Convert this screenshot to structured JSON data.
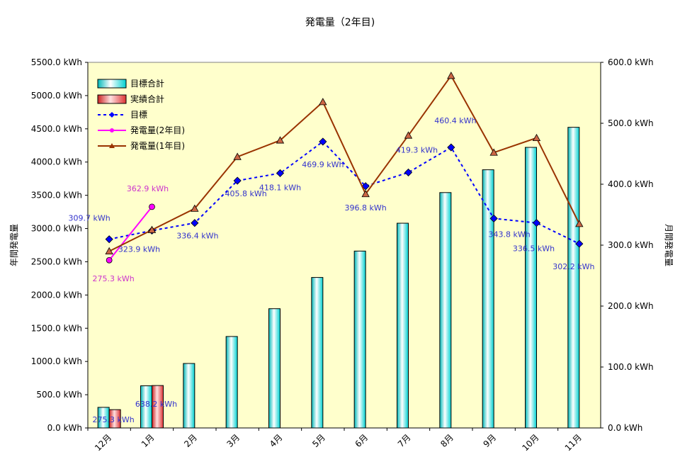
{
  "chart_data": {
    "type": "bar",
    "title": "発電量（2年目)",
    "ylabel_left": "年間発電量",
    "ylabel_right": "月間発電量",
    "ylim_left": [
      0,
      5500
    ],
    "ylim_right": [
      0,
      600
    ],
    "left_ticks": [
      "0.0 kWh",
      "500.0 kWh",
      "1000.0 kWh",
      "1500.0 kWh",
      "2000.0 kWh",
      "2500.0 kWh",
      "3000.0 kWh",
      "3500.0 kWh",
      "4000.0 kWh",
      "4500.0 kWh",
      "5000.0 kWh",
      "5500.0 kWh"
    ],
    "right_ticks": [
      "0.0 kWh",
      "100.0 kWh",
      "200.0 kWh",
      "300.0 kWh",
      "400.0 kWh",
      "500.0 kWh",
      "600.0 kWh"
    ],
    "categories": [
      "12月",
      "1月",
      "2月",
      "3月",
      "4月",
      "5月",
      "6月",
      "7月",
      "8月",
      "9月",
      "10月",
      "11月"
    ],
    "legend_position": "top-left",
    "plot_background": "#ffffcc",
    "series": [
      {
        "name": "目標合計",
        "kind": "bar",
        "axis": "left",
        "color": "#00ffff",
        "values": [
          310,
          634,
          970,
          1376,
          1794,
          2264,
          2661,
          3080,
          3541,
          3884,
          4221,
          4523
        ]
      },
      {
        "name": "実績合計",
        "kind": "bar",
        "axis": "left",
        "color": "#ff9999",
        "values": [
          275.3,
          638.2,
          null,
          null,
          null,
          null,
          null,
          null,
          null,
          null,
          null,
          null
        ]
      },
      {
        "name": "目標",
        "kind": "line",
        "axis": "right",
        "color": "#0000ff",
        "dash": true,
        "marker": "diamond",
        "values": [
          309.7,
          323.9,
          336.4,
          405.8,
          418.1,
          469.9,
          396.8,
          419.3,
          460.4,
          343.8,
          336.5,
          302.2
        ]
      },
      {
        "name": "発電量(2年目)",
        "kind": "line",
        "axis": "right",
        "color": "#ff00ff",
        "marker": "circle",
        "values": [
          275.3,
          362.9,
          null,
          null,
          null,
          null,
          null,
          null,
          null,
          null,
          null,
          null
        ]
      },
      {
        "name": "発電量(1年目)",
        "kind": "line",
        "axis": "right",
        "color": "#993300",
        "marker": "triangle",
        "values": [
          290,
          325,
          360,
          445,
          472,
          535,
          384,
          480,
          578,
          452,
          476,
          335
        ]
      }
    ],
    "data_labels": {
      "target": [
        "309.7 kWh",
        "323.9 kWh",
        "336.4 kWh",
        "405.8 kWh",
        "418.1 kWh",
        "469.9 kWh",
        "396.8 kWh",
        "419.3 kWh",
        "460.4 kWh",
        "343.8 kWh",
        "336.5 kWh",
        "302.2 kWh"
      ],
      "year2": [
        "275.3 kWh",
        "362.9 kWh"
      ],
      "cumulative_actual": [
        "275.3 kWh",
        "638.2 kWh"
      ]
    }
  }
}
